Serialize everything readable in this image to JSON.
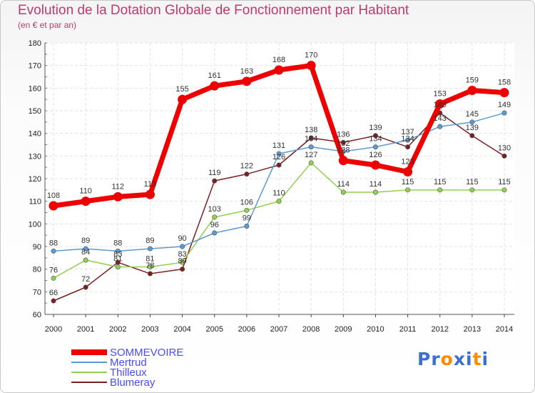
{
  "chart_data": {
    "type": "line",
    "title": "Evolution de la Dotation Globale de Fonctionnement par Habitant",
    "subtitle": "(en € et par an)",
    "xlabel": "",
    "ylabel": "",
    "x": [
      "2000",
      "2001",
      "2002",
      "2003",
      "2004",
      "2005",
      "2006",
      "2007",
      "2008",
      "2009",
      "2010",
      "2011",
      "2012",
      "2013",
      "2014"
    ],
    "ylim": [
      60,
      180
    ],
    "yticks": [
      60,
      70,
      80,
      90,
      100,
      110,
      120,
      130,
      140,
      150,
      160,
      170,
      180
    ],
    "grid": true,
    "legend_position": "bottom-left",
    "series": [
      {
        "name": "SOMMEVOIRE",
        "color": "#ee0000",
        "legend_color": "#4a4aff",
        "values": [
          108,
          110,
          112,
          113,
          155,
          161,
          163,
          168,
          170,
          128,
          126,
          123,
          153,
          159,
          158
        ]
      },
      {
        "name": "Mertrud",
        "color": "#5a9bd5",
        "legend_color": "#4a4aff",
        "values": [
          88,
          89,
          88,
          89,
          90,
          96,
          99,
          131,
          134,
          132,
          134,
          137,
          143,
          145,
          149
        ]
      },
      {
        "name": "Thilleux",
        "color": "#92d050",
        "legend_color": "#4a4aff",
        "values": [
          76,
          84,
          81,
          81,
          83,
          103,
          106,
          110,
          127,
          114,
          114,
          115,
          115,
          115,
          115
        ]
      },
      {
        "name": "Blumeray",
        "color": "#7b2020",
        "legend_color": "#4a4aff",
        "values": [
          66,
          72,
          83,
          78,
          80,
          119,
          122,
          126,
          138,
          136,
          139,
          134,
          149,
          139,
          130
        ]
      }
    ]
  },
  "logo": {
    "text": "Proxiti",
    "letters": [
      "P",
      "r",
      "o",
      "x",
      "i",
      "t",
      "i"
    ],
    "colors": [
      "#3c6fd1",
      "#3c6fd1",
      "#ff8c00",
      "#3c6fd1",
      "#3c6fd1",
      "#ff8c00",
      "#3c6fd1"
    ]
  }
}
